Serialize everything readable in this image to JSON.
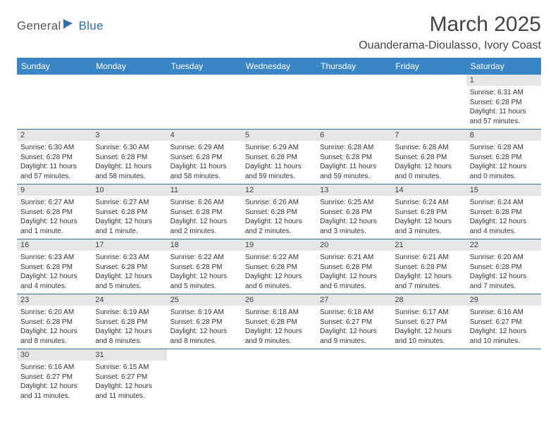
{
  "logo": {
    "part1": "General",
    "part2": "Blue"
  },
  "title": "March 2025",
  "location": "Ouanderama-Dioulasso, Ivory Coast",
  "colors": {
    "header_bg": "#3a85c6",
    "header_text": "#ffffff",
    "row_divider": "#3a6fa0",
    "daynum_bg": "#e6e6e6",
    "logo_accent": "#2f6faa"
  },
  "typography": {
    "title_fontsize": 30,
    "location_fontsize": 16,
    "header_fontsize": 12,
    "daynum_fontsize": 11,
    "body_fontsize": 10
  },
  "day_headers": [
    "Sunday",
    "Monday",
    "Tuesday",
    "Wednesday",
    "Thursday",
    "Friday",
    "Saturday"
  ],
  "weeks": [
    [
      null,
      null,
      null,
      null,
      null,
      null,
      {
        "num": "1",
        "sunrise": "Sunrise: 6:31 AM",
        "sunset": "Sunset: 6:28 PM",
        "daylight": "Daylight: 11 hours and 57 minutes."
      }
    ],
    [
      {
        "num": "2",
        "sunrise": "Sunrise: 6:30 AM",
        "sunset": "Sunset: 6:28 PM",
        "daylight": "Daylight: 11 hours and 57 minutes."
      },
      {
        "num": "3",
        "sunrise": "Sunrise: 6:30 AM",
        "sunset": "Sunset: 6:28 PM",
        "daylight": "Daylight: 11 hours and 58 minutes."
      },
      {
        "num": "4",
        "sunrise": "Sunrise: 6:29 AM",
        "sunset": "Sunset: 6:28 PM",
        "daylight": "Daylight: 11 hours and 58 minutes."
      },
      {
        "num": "5",
        "sunrise": "Sunrise: 6:29 AM",
        "sunset": "Sunset: 6:28 PM",
        "daylight": "Daylight: 11 hours and 59 minutes."
      },
      {
        "num": "6",
        "sunrise": "Sunrise: 6:28 AM",
        "sunset": "Sunset: 6:28 PM",
        "daylight": "Daylight: 11 hours and 59 minutes."
      },
      {
        "num": "7",
        "sunrise": "Sunrise: 6:28 AM",
        "sunset": "Sunset: 6:28 PM",
        "daylight": "Daylight: 12 hours and 0 minutes."
      },
      {
        "num": "8",
        "sunrise": "Sunrise: 6:28 AM",
        "sunset": "Sunset: 6:28 PM",
        "daylight": "Daylight: 12 hours and 0 minutes."
      }
    ],
    [
      {
        "num": "9",
        "sunrise": "Sunrise: 6:27 AM",
        "sunset": "Sunset: 6:28 PM",
        "daylight": "Daylight: 12 hours and 1 minute."
      },
      {
        "num": "10",
        "sunrise": "Sunrise: 6:27 AM",
        "sunset": "Sunset: 6:28 PM",
        "daylight": "Daylight: 12 hours and 1 minute."
      },
      {
        "num": "11",
        "sunrise": "Sunrise: 6:26 AM",
        "sunset": "Sunset: 6:28 PM",
        "daylight": "Daylight: 12 hours and 2 minutes."
      },
      {
        "num": "12",
        "sunrise": "Sunrise: 6:26 AM",
        "sunset": "Sunset: 6:28 PM",
        "daylight": "Daylight: 12 hours and 2 minutes."
      },
      {
        "num": "13",
        "sunrise": "Sunrise: 6:25 AM",
        "sunset": "Sunset: 6:28 PM",
        "daylight": "Daylight: 12 hours and 3 minutes."
      },
      {
        "num": "14",
        "sunrise": "Sunrise: 6:24 AM",
        "sunset": "Sunset: 6:28 PM",
        "daylight": "Daylight: 12 hours and 3 minutes."
      },
      {
        "num": "15",
        "sunrise": "Sunrise: 6:24 AM",
        "sunset": "Sunset: 6:28 PM",
        "daylight": "Daylight: 12 hours and 4 minutes."
      }
    ],
    [
      {
        "num": "16",
        "sunrise": "Sunrise: 6:23 AM",
        "sunset": "Sunset: 6:28 PM",
        "daylight": "Daylight: 12 hours and 4 minutes."
      },
      {
        "num": "17",
        "sunrise": "Sunrise: 6:23 AM",
        "sunset": "Sunset: 6:28 PM",
        "daylight": "Daylight: 12 hours and 5 minutes."
      },
      {
        "num": "18",
        "sunrise": "Sunrise: 6:22 AM",
        "sunset": "Sunset: 6:28 PM",
        "daylight": "Daylight: 12 hours and 5 minutes."
      },
      {
        "num": "19",
        "sunrise": "Sunrise: 6:22 AM",
        "sunset": "Sunset: 6:28 PM",
        "daylight": "Daylight: 12 hours and 6 minutes."
      },
      {
        "num": "20",
        "sunrise": "Sunrise: 6:21 AM",
        "sunset": "Sunset: 6:28 PM",
        "daylight": "Daylight: 12 hours and 6 minutes."
      },
      {
        "num": "21",
        "sunrise": "Sunrise: 6:21 AM",
        "sunset": "Sunset: 6:28 PM",
        "daylight": "Daylight: 12 hours and 7 minutes."
      },
      {
        "num": "22",
        "sunrise": "Sunrise: 6:20 AM",
        "sunset": "Sunset: 6:28 PM",
        "daylight": "Daylight: 12 hours and 7 minutes."
      }
    ],
    [
      {
        "num": "23",
        "sunrise": "Sunrise: 6:20 AM",
        "sunset": "Sunset: 6:28 PM",
        "daylight": "Daylight: 12 hours and 8 minutes."
      },
      {
        "num": "24",
        "sunrise": "Sunrise: 6:19 AM",
        "sunset": "Sunset: 6:28 PM",
        "daylight": "Daylight: 12 hours and 8 minutes."
      },
      {
        "num": "25",
        "sunrise": "Sunrise: 6:19 AM",
        "sunset": "Sunset: 6:28 PM",
        "daylight": "Daylight: 12 hours and 8 minutes."
      },
      {
        "num": "26",
        "sunrise": "Sunrise: 6:18 AM",
        "sunset": "Sunset: 6:28 PM",
        "daylight": "Daylight: 12 hours and 9 minutes."
      },
      {
        "num": "27",
        "sunrise": "Sunrise: 6:18 AM",
        "sunset": "Sunset: 6:27 PM",
        "daylight": "Daylight: 12 hours and 9 minutes."
      },
      {
        "num": "28",
        "sunrise": "Sunrise: 6:17 AM",
        "sunset": "Sunset: 6:27 PM",
        "daylight": "Daylight: 12 hours and 10 minutes."
      },
      {
        "num": "29",
        "sunrise": "Sunrise: 6:16 AM",
        "sunset": "Sunset: 6:27 PM",
        "daylight": "Daylight: 12 hours and 10 minutes."
      }
    ],
    [
      {
        "num": "30",
        "sunrise": "Sunrise: 6:16 AM",
        "sunset": "Sunset: 6:27 PM",
        "daylight": "Daylight: 12 hours and 11 minutes."
      },
      {
        "num": "31",
        "sunrise": "Sunrise: 6:15 AM",
        "sunset": "Sunset: 6:27 PM",
        "daylight": "Daylight: 12 hours and 11 minutes."
      },
      null,
      null,
      null,
      null,
      null
    ]
  ]
}
